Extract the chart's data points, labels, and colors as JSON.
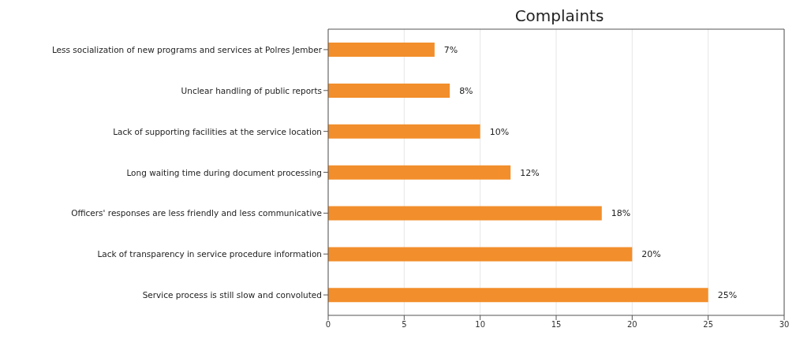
{
  "chart_data": {
    "type": "bar",
    "orientation": "horizontal",
    "title": "Complaints",
    "categories": [
      "Less socialization of new programs and services at Polres Jember",
      "Unclear handling of public reports",
      "Lack of supporting facilities at the service location",
      "Long waiting time during document processing",
      "Officers' responses are less friendly and less communicative",
      "Lack of transparency in service procedure information",
      "Service process is still slow and convoluted"
    ],
    "values": [
      7,
      8,
      10,
      12,
      18,
      20,
      25
    ],
    "value_labels": [
      "7%",
      "8%",
      "10%",
      "12%",
      "18%",
      "20%",
      "25%"
    ],
    "color": "#f28e2b",
    "xlim": [
      0,
      30
    ],
    "xticks": [
      0,
      5,
      10,
      15,
      20,
      25,
      30
    ],
    "grid": "x"
  }
}
